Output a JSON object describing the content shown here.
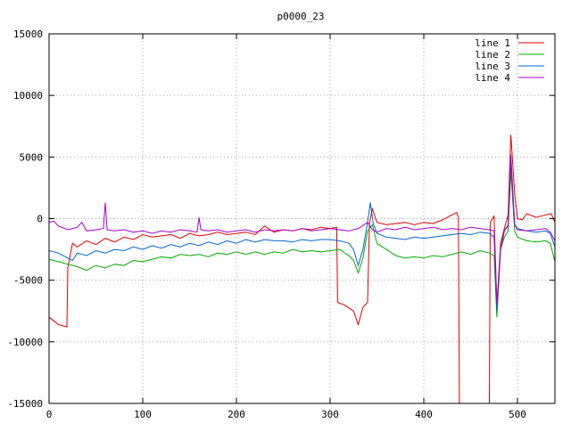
{
  "chart_data": {
    "type": "line",
    "title": "p0000_23",
    "xlabel": "",
    "ylabel": "",
    "xlim": [
      0,
      540
    ],
    "ylim": [
      -15000,
      15000
    ],
    "x_ticks": [
      0,
      100,
      200,
      300,
      400,
      500
    ],
    "y_ticks": [
      -15000,
      -10000,
      -5000,
      0,
      5000,
      10000,
      15000
    ],
    "grid": true,
    "legend_position": "top-right",
    "series": [
      {
        "name": "line 1",
        "color": "#dd0000",
        "points": [
          [
            0,
            -8000
          ],
          [
            5,
            -8300
          ],
          [
            10,
            -8600
          ],
          [
            15,
            -8700
          ],
          [
            19,
            -8800
          ],
          [
            20,
            -4000
          ],
          [
            25,
            -2000
          ],
          [
            30,
            -2300
          ],
          [
            40,
            -1800
          ],
          [
            50,
            -2100
          ],
          [
            60,
            -1600
          ],
          [
            70,
            -1900
          ],
          [
            80,
            -1500
          ],
          [
            90,
            -1700
          ],
          [
            100,
            -1300
          ],
          [
            110,
            -1500
          ],
          [
            120,
            -1400
          ],
          [
            130,
            -1300
          ],
          [
            140,
            -1600
          ],
          [
            150,
            -1200
          ],
          [
            160,
            -1400
          ],
          [
            170,
            -1300
          ],
          [
            180,
            -1100
          ],
          [
            190,
            -1300
          ],
          [
            200,
            -1200
          ],
          [
            210,
            -1100
          ],
          [
            220,
            -1300
          ],
          [
            230,
            -600
          ],
          [
            240,
            -1100
          ],
          [
            250,
            -900
          ],
          [
            260,
            -1000
          ],
          [
            270,
            -800
          ],
          [
            280,
            -900
          ],
          [
            290,
            -700
          ],
          [
            300,
            -800
          ],
          [
            307,
            -700
          ],
          [
            308,
            -6800
          ],
          [
            315,
            -7000
          ],
          [
            325,
            -7500
          ],
          [
            330,
            -8600
          ],
          [
            335,
            -7200
          ],
          [
            340,
            -6800
          ],
          [
            342,
            -400
          ],
          [
            345,
            800
          ],
          [
            350,
            -300
          ],
          [
            360,
            -500
          ],
          [
            370,
            -400
          ],
          [
            380,
            -300
          ],
          [
            390,
            -500
          ],
          [
            400,
            -300
          ],
          [
            410,
            -400
          ],
          [
            420,
            -100
          ],
          [
            430,
            300
          ],
          [
            435,
            500
          ],
          [
            437,
            100
          ],
          [
            438,
            -15000
          ],
          [
            470,
            -15000
          ],
          [
            471,
            -300
          ],
          [
            475,
            200
          ],
          [
            478,
            -7000
          ],
          [
            482,
            -2000
          ],
          [
            486,
            -800
          ],
          [
            490,
            300
          ],
          [
            493,
            6800
          ],
          [
            497,
            2000
          ],
          [
            500,
            0
          ],
          [
            505,
            -100
          ],
          [
            510,
            400
          ],
          [
            520,
            100
          ],
          [
            530,
            300
          ],
          [
            536,
            400
          ],
          [
            540,
            -300
          ]
        ]
      },
      {
        "name": "line 2",
        "color": "#00aa00",
        "points": [
          [
            0,
            -3300
          ],
          [
            10,
            -3500
          ],
          [
            20,
            -3700
          ],
          [
            30,
            -3900
          ],
          [
            40,
            -4200
          ],
          [
            50,
            -3800
          ],
          [
            60,
            -4000
          ],
          [
            70,
            -3700
          ],
          [
            80,
            -3800
          ],
          [
            90,
            -3400
          ],
          [
            100,
            -3500
          ],
          [
            110,
            -3300
          ],
          [
            120,
            -3100
          ],
          [
            130,
            -3200
          ],
          [
            140,
            -2900
          ],
          [
            150,
            -3000
          ],
          [
            160,
            -2900
          ],
          [
            170,
            -3100
          ],
          [
            180,
            -2800
          ],
          [
            190,
            -2900
          ],
          [
            200,
            -2700
          ],
          [
            210,
            -2900
          ],
          [
            220,
            -2700
          ],
          [
            230,
            -2900
          ],
          [
            240,
            -2700
          ],
          [
            250,
            -2800
          ],
          [
            260,
            -2500
          ],
          [
            270,
            -2700
          ],
          [
            280,
            -2600
          ],
          [
            290,
            -2700
          ],
          [
            300,
            -2600
          ],
          [
            310,
            -2500
          ],
          [
            320,
            -3000
          ],
          [
            325,
            -3400
          ],
          [
            330,
            -4400
          ],
          [
            335,
            -3200
          ],
          [
            340,
            -1000
          ],
          [
            345,
            -500
          ],
          [
            350,
            -2000
          ],
          [
            360,
            -2500
          ],
          [
            370,
            -3000
          ],
          [
            380,
            -3200
          ],
          [
            390,
            -3100
          ],
          [
            400,
            -3200
          ],
          [
            410,
            -3000
          ],
          [
            420,
            -3100
          ],
          [
            430,
            -2900
          ],
          [
            440,
            -2700
          ],
          [
            450,
            -2900
          ],
          [
            460,
            -2600
          ],
          [
            470,
            -2800
          ],
          [
            475,
            -3000
          ],
          [
            478,
            -8000
          ],
          [
            482,
            -2500
          ],
          [
            486,
            -1500
          ],
          [
            490,
            -1000
          ],
          [
            493,
            3800
          ],
          [
            497,
            -1000
          ],
          [
            500,
            -1500
          ],
          [
            510,
            -1800
          ],
          [
            520,
            -1900
          ],
          [
            530,
            -1800
          ],
          [
            535,
            -2000
          ],
          [
            540,
            -3500
          ]
        ]
      },
      {
        "name": "line 3",
        "color": "#0066cc",
        "points": [
          [
            0,
            -2600
          ],
          [
            10,
            -2800
          ],
          [
            20,
            -3200
          ],
          [
            25,
            -3400
          ],
          [
            30,
            -2800
          ],
          [
            40,
            -3000
          ],
          [
            50,
            -2600
          ],
          [
            60,
            -2800
          ],
          [
            70,
            -2500
          ],
          [
            80,
            -2600
          ],
          [
            90,
            -2300
          ],
          [
            100,
            -2500
          ],
          [
            110,
            -2200
          ],
          [
            120,
            -2400
          ],
          [
            130,
            -2100
          ],
          [
            140,
            -2300
          ],
          [
            150,
            -2000
          ],
          [
            160,
            -2200
          ],
          [
            170,
            -1900
          ],
          [
            180,
            -2100
          ],
          [
            190,
            -1800
          ],
          [
            200,
            -2000
          ],
          [
            210,
            -1700
          ],
          [
            220,
            -1900
          ],
          [
            230,
            -1700
          ],
          [
            240,
            -1800
          ],
          [
            250,
            -1800
          ],
          [
            260,
            -1900
          ],
          [
            270,
            -1700
          ],
          [
            280,
            -1800
          ],
          [
            290,
            -1700
          ],
          [
            300,
            -1700
          ],
          [
            310,
            -1800
          ],
          [
            320,
            -2000
          ],
          [
            325,
            -2500
          ],
          [
            330,
            -3800
          ],
          [
            335,
            -2500
          ],
          [
            340,
            -300
          ],
          [
            343,
            1300
          ],
          [
            346,
            -400
          ],
          [
            350,
            -1200
          ],
          [
            360,
            -1500
          ],
          [
            370,
            -1600
          ],
          [
            380,
            -1700
          ],
          [
            390,
            -1500
          ],
          [
            400,
            -1600
          ],
          [
            410,
            -1500
          ],
          [
            420,
            -1400
          ],
          [
            430,
            -1300
          ],
          [
            440,
            -1200
          ],
          [
            450,
            -1300
          ],
          [
            460,
            -1100
          ],
          [
            470,
            -1200
          ],
          [
            475,
            -1500
          ],
          [
            478,
            -7500
          ],
          [
            482,
            -2500
          ],
          [
            486,
            -1000
          ],
          [
            490,
            -500
          ],
          [
            493,
            4500
          ],
          [
            497,
            -500
          ],
          [
            500,
            -800
          ],
          [
            510,
            -1000
          ],
          [
            520,
            -1100
          ],
          [
            530,
            -1000
          ],
          [
            535,
            -1200
          ],
          [
            540,
            -2300
          ]
        ]
      },
      {
        "name": "line 4",
        "color": "#aa00cc",
        "points": [
          [
            0,
            -300
          ],
          [
            5,
            -200
          ],
          [
            10,
            -600
          ],
          [
            20,
            -900
          ],
          [
            30,
            -700
          ],
          [
            35,
            -300
          ],
          [
            40,
            -1000
          ],
          [
            50,
            -900
          ],
          [
            58,
            -800
          ],
          [
            60,
            1300
          ],
          [
            62,
            -900
          ],
          [
            70,
            -1000
          ],
          [
            80,
            -900
          ],
          [
            90,
            -1100
          ],
          [
            100,
            -1000
          ],
          [
            110,
            -1200
          ],
          [
            120,
            -1000
          ],
          [
            130,
            -1100
          ],
          [
            140,
            -900
          ],
          [
            150,
            -1000
          ],
          [
            158,
            -1100
          ],
          [
            160,
            100
          ],
          [
            162,
            -900
          ],
          [
            170,
            -1000
          ],
          [
            180,
            -900
          ],
          [
            190,
            -1100
          ],
          [
            200,
            -1000
          ],
          [
            210,
            -900
          ],
          [
            220,
            -1100
          ],
          [
            230,
            -900
          ],
          [
            240,
            -1000
          ],
          [
            250,
            -900
          ],
          [
            260,
            -1000
          ],
          [
            270,
            -800
          ],
          [
            280,
            -1000
          ],
          [
            290,
            -900
          ],
          [
            300,
            -800
          ],
          [
            310,
            -900
          ],
          [
            320,
            -1000
          ],
          [
            330,
            -800
          ],
          [
            340,
            -300
          ],
          [
            345,
            -900
          ],
          [
            350,
            -1100
          ],
          [
            360,
            -800
          ],
          [
            370,
            -900
          ],
          [
            380,
            -700
          ],
          [
            390,
            -900
          ],
          [
            400,
            -800
          ],
          [
            410,
            -700
          ],
          [
            420,
            -900
          ],
          [
            430,
            -800
          ],
          [
            440,
            -900
          ],
          [
            450,
            -700
          ],
          [
            460,
            -800
          ],
          [
            470,
            -900
          ],
          [
            475,
            -1000
          ],
          [
            478,
            -7000
          ],
          [
            482,
            -2500
          ],
          [
            486,
            -1000
          ],
          [
            490,
            -600
          ],
          [
            493,
            5200
          ],
          [
            497,
            -500
          ],
          [
            500,
            -900
          ],
          [
            510,
            -1000
          ],
          [
            520,
            -900
          ],
          [
            530,
            -800
          ],
          [
            535,
            -1100
          ],
          [
            540,
            -1800
          ]
        ]
      }
    ]
  }
}
